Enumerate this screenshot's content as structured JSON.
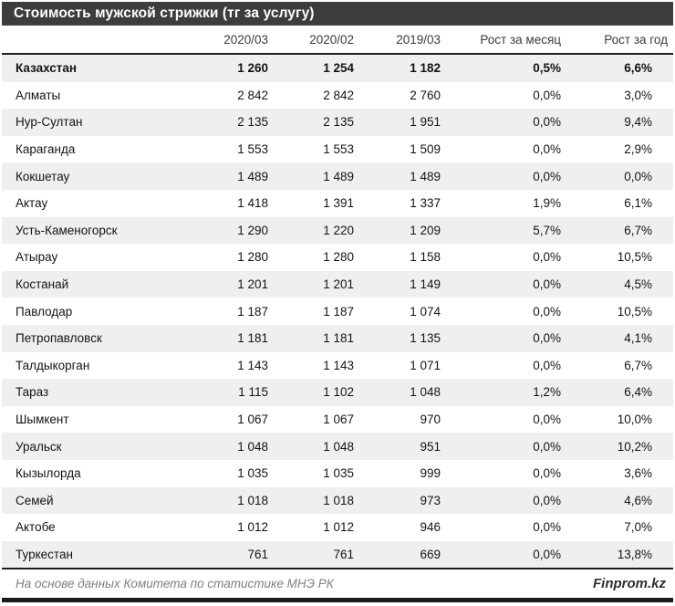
{
  "title": "Стоимость мужской стрижки (тг за услугу)",
  "footer": {
    "source": "На основе данных Комитета по статистике МНЭ РК",
    "brand": "Finprom.kz"
  },
  "colors": {
    "title_bar": "#3d3d3d",
    "row_alt": "#efefef",
    "rule_line": "#1f1f1f",
    "footer_text": "#7f7f7f"
  },
  "chart_data": {
    "type": "table",
    "title": "Стоимость мужской стрижки (тг за услугу)",
    "columns": [
      "",
      "2020/03",
      "2020/02",
      "2019/03",
      "Рост за месяц",
      "Рост за год"
    ],
    "rows": [
      {
        "name": "Казахстан",
        "values": [
          "1 260",
          "1 254",
          "1 182",
          "0,5%",
          "6,6%"
        ],
        "bold": true
      },
      {
        "name": "Алматы",
        "values": [
          "2 842",
          "2 842",
          "2 760",
          "0,0%",
          "3,0%"
        ],
        "bold": false
      },
      {
        "name": "Нур-Султан",
        "values": [
          "2 135",
          "2 135",
          "1 951",
          "0,0%",
          "9,4%"
        ],
        "bold": false
      },
      {
        "name": "Караганда",
        "values": [
          "1 553",
          "1 553",
          "1 509",
          "0,0%",
          "2,9%"
        ],
        "bold": false
      },
      {
        "name": "Кокшетау",
        "values": [
          "1 489",
          "1 489",
          "1 489",
          "0,0%",
          "0,0%"
        ],
        "bold": false
      },
      {
        "name": "Актау",
        "values": [
          "1 418",
          "1 391",
          "1 337",
          "1,9%",
          "6,1%"
        ],
        "bold": false
      },
      {
        "name": "Усть-Каменогорск",
        "values": [
          "1 290",
          "1 220",
          "1 209",
          "5,7%",
          "6,7%"
        ],
        "bold": false
      },
      {
        "name": "Атырау",
        "values": [
          "1 280",
          "1 280",
          "1 158",
          "0,0%",
          "10,5%"
        ],
        "bold": false
      },
      {
        "name": "Костанай",
        "values": [
          "1 201",
          "1 201",
          "1 149",
          "0,0%",
          "4,5%"
        ],
        "bold": false
      },
      {
        "name": "Павлодар",
        "values": [
          "1 187",
          "1 187",
          "1 074",
          "0,0%",
          "10,5%"
        ],
        "bold": false
      },
      {
        "name": "Петропавловск",
        "values": [
          "1 181",
          "1 181",
          "1 135",
          "0,0%",
          "4,1%"
        ],
        "bold": false
      },
      {
        "name": "Талдыкорган",
        "values": [
          "1 143",
          "1 143",
          "1 071",
          "0,0%",
          "6,7%"
        ],
        "bold": false
      },
      {
        "name": "Тараз",
        "values": [
          "1 115",
          "1 102",
          "1 048",
          "1,2%",
          "6,4%"
        ],
        "bold": false
      },
      {
        "name": "Шымкент",
        "values": [
          "1 067",
          "1 067",
          "970",
          "0,0%",
          "10,0%"
        ],
        "bold": false
      },
      {
        "name": "Уральск",
        "values": [
          "1 048",
          "1 048",
          "951",
          "0,0%",
          "10,2%"
        ],
        "bold": false
      },
      {
        "name": "Кызылорда",
        "values": [
          "1 035",
          "1 035",
          "999",
          "0,0%",
          "3,6%"
        ],
        "bold": false
      },
      {
        "name": "Семей",
        "values": [
          "1 018",
          "1 018",
          "973",
          "0,0%",
          "4,6%"
        ],
        "bold": false
      },
      {
        "name": "Актобе",
        "values": [
          "1 012",
          "1 012",
          "946",
          "0,0%",
          "7,0%"
        ],
        "bold": false
      },
      {
        "name": "Туркестан",
        "values": [
          "761",
          "761",
          "669",
          "0,0%",
          "13,8%"
        ],
        "bold": false
      }
    ]
  }
}
